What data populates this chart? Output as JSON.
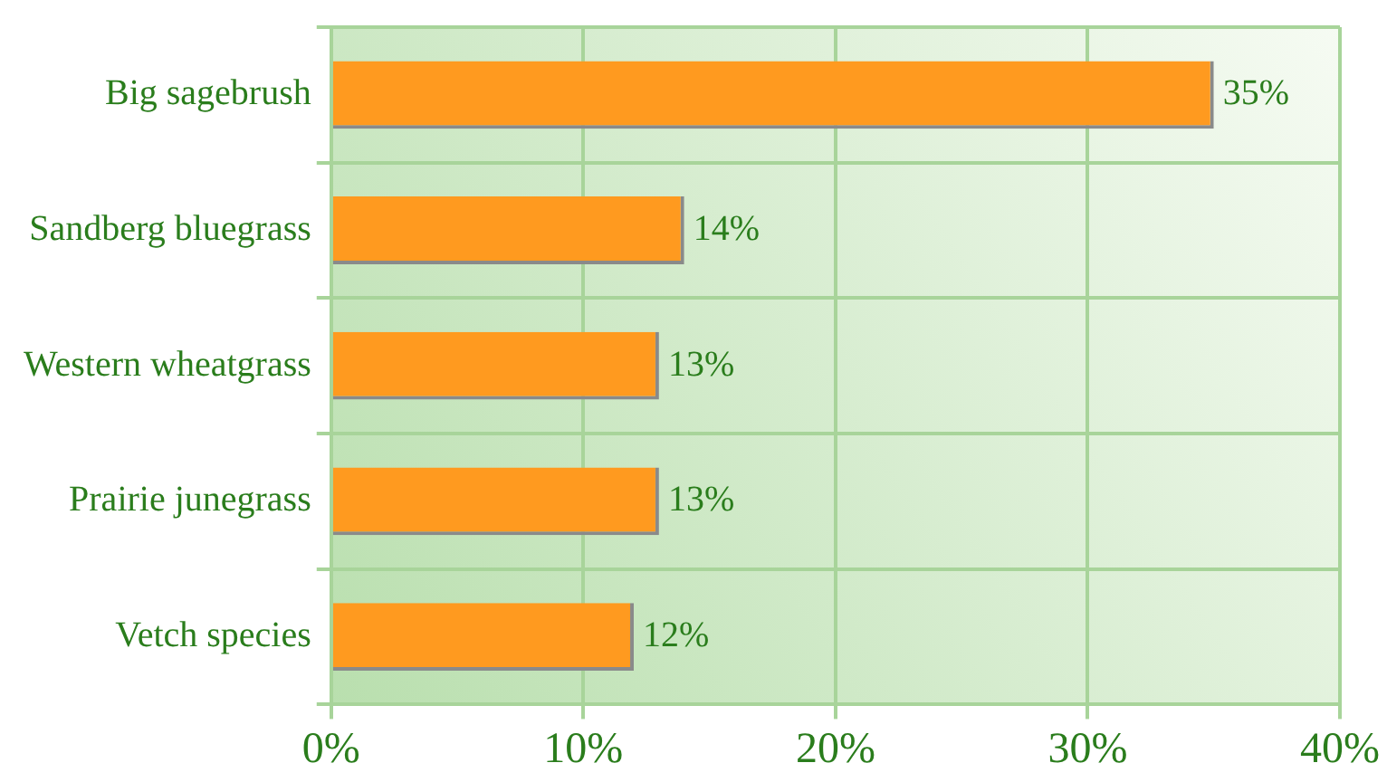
{
  "chart_data": {
    "type": "bar",
    "orientation": "horizontal",
    "categories": [
      "Big sagebrush",
      "Sandberg bluegrass",
      "Western wheatgrass",
      "Prairie junegrass",
      "Vetch species"
    ],
    "values": [
      35,
      14,
      13,
      13,
      12
    ],
    "color": "#ff9a1f",
    "value_labels": [
      "35%",
      "14%",
      "13%",
      "13%",
      "12%"
    ],
    "xlim": [
      0,
      40
    ],
    "xticks": [
      {
        "value": 0,
        "label": "0%"
      },
      {
        "value": 10,
        "label": "10%"
      },
      {
        "value": 20,
        "label": "20%"
      },
      {
        "value": 30,
        "label": "30%"
      },
      {
        "value": 40,
        "label": "40%"
      }
    ],
    "grid": true
  }
}
